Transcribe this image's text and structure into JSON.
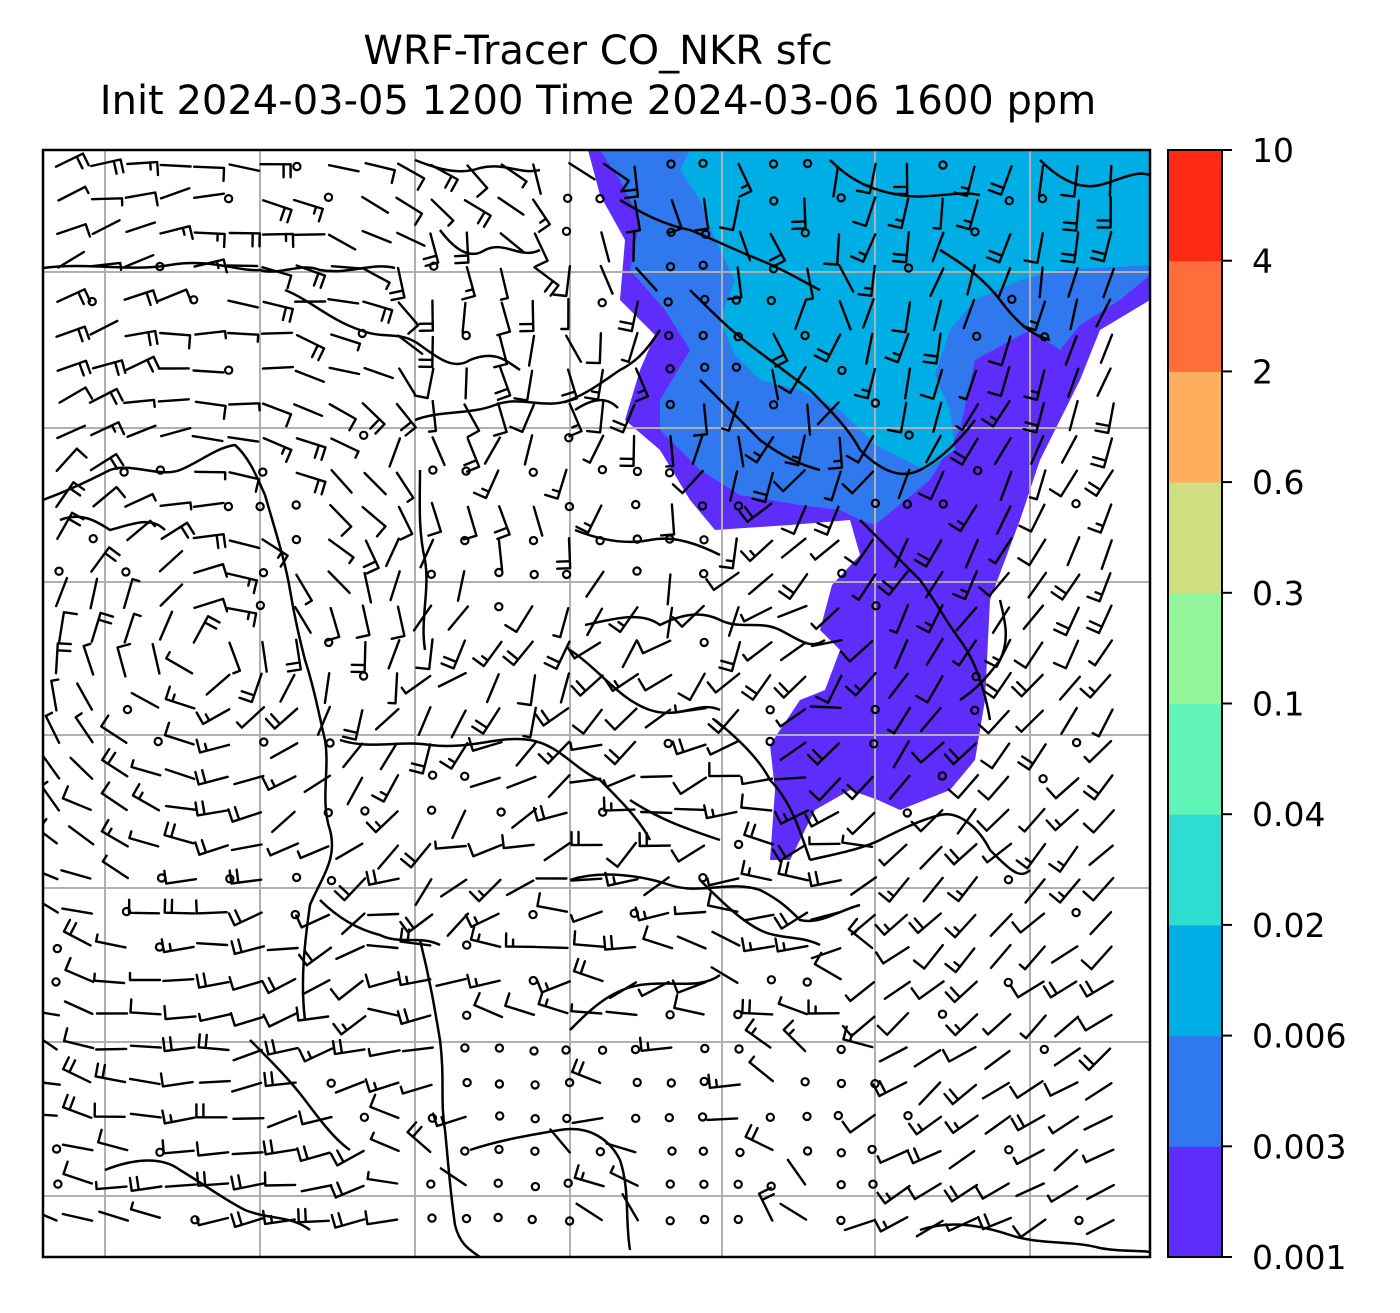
{
  "title": {
    "line1": "WRF-Tracer CO_NKR sfc",
    "line2": "Init 2024-03-05 1200 Time 2024-03-06 1600 ppm"
  },
  "colorbar": {
    "tick_labels": [
      "0.001",
      "0.003",
      "0.006",
      "0.02",
      "0.04",
      "0.1",
      "0.3",
      "0.6",
      "2",
      "4",
      "10"
    ],
    "colors": [
      "#5f2dfb",
      "#2f78ee",
      "#00aee6",
      "#2fdcd0",
      "#60f5b6",
      "#93f59a",
      "#d0de82",
      "#ffae5d",
      "#ff6e3a",
      "#ff2a14"
    ]
  },
  "map": {
    "background": "#ffffff",
    "coastline_color": "#000000",
    "grid_color": "#b0b0b0",
    "plume_levels": [
      "0.001-0.003",
      "0.003-0.006",
      "0.006-0.02"
    ]
  }
}
